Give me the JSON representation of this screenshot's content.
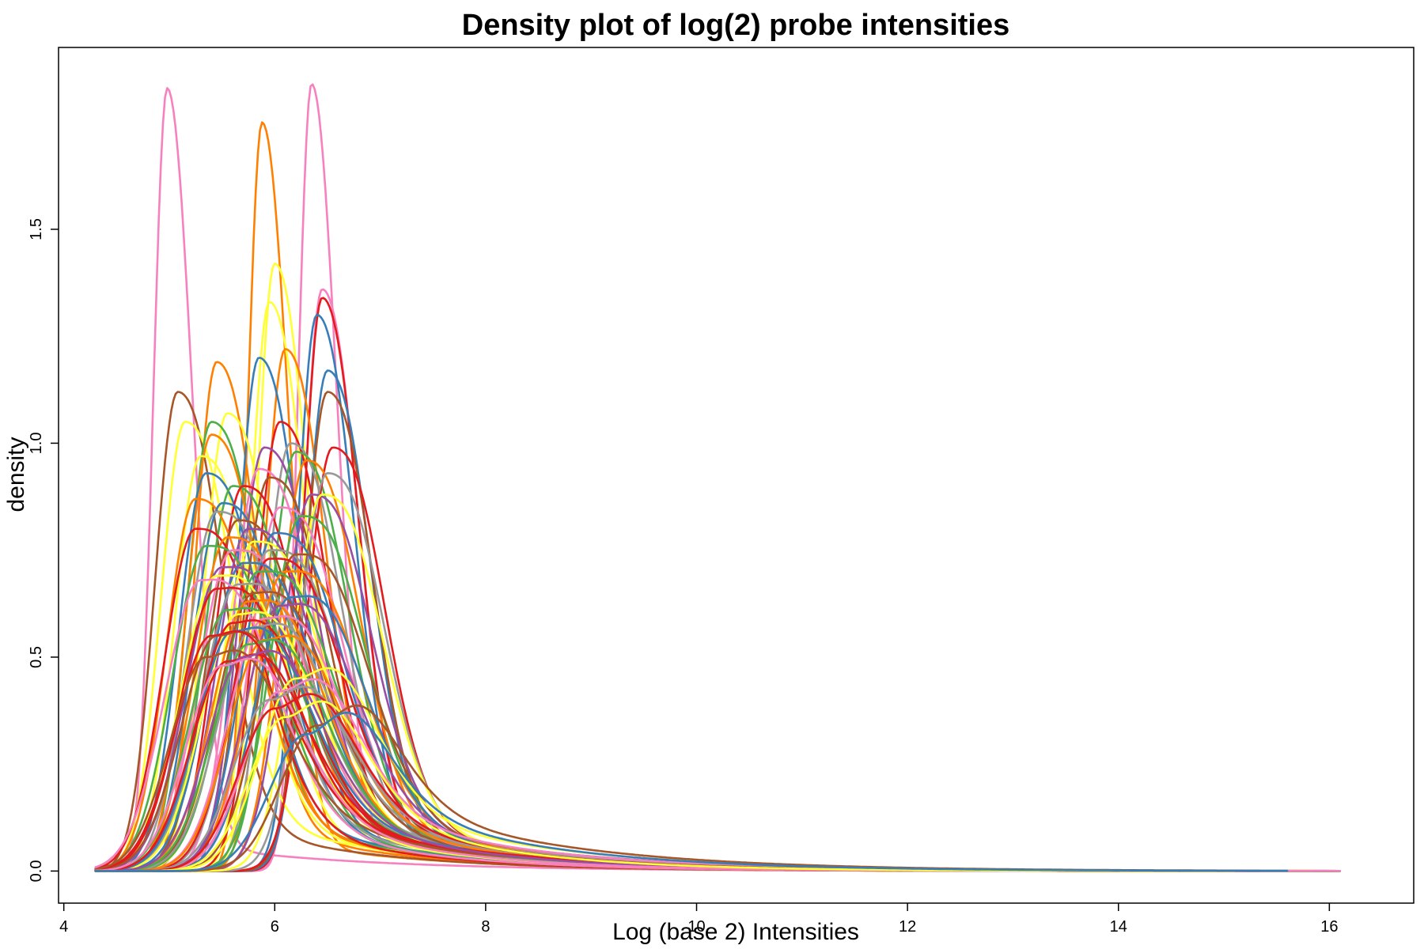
{
  "chart_data": {
    "type": "line",
    "title": "Density plot of log(2) probe intensities",
    "xlabel": "Log (base 2) Intensities",
    "ylabel": "density",
    "xlim": [
      3.95,
      16.8
    ],
    "ylim": [
      -0.075,
      1.925
    ],
    "x_ticks": [
      4,
      6,
      8,
      10,
      12,
      14,
      16
    ],
    "y_ticks": [
      0.0,
      0.5,
      1.0,
      1.5
    ],
    "x_tick_labels": [
      "4",
      "6",
      "8",
      "10",
      "12",
      "14",
      "16"
    ],
    "y_tick_labels": [
      "0.0",
      "0.5",
      "1.0",
      "1.5"
    ],
    "grid": false,
    "legend": "none",
    "palette": [
      "#e41a1c",
      "#377eb8",
      "#4daf4a",
      "#984ea3",
      "#ff7f00",
      "#ffff33",
      "#a65628",
      "#f781bf",
      "#999999",
      "#66c2a5",
      "#fc8d62",
      "#8da0cb",
      "#e78ac3",
      "#a6d854",
      "#ffd92f",
      "#e5c494",
      "#b3b3b3"
    ],
    "series": [
      {
        "color": "#f781bf",
        "peak_x": 4.98,
        "peak_y": 1.83
      },
      {
        "color": "#f781bf",
        "peak_x": 6.35,
        "peak_y": 1.84
      },
      {
        "color": "#ff7f00",
        "peak_x": 5.88,
        "peak_y": 1.75
      },
      {
        "color": "#ffff33",
        "peak_x": 6.0,
        "peak_y": 1.42
      },
      {
        "color": "#ffff33",
        "peak_x": 5.95,
        "peak_y": 1.33
      },
      {
        "color": "#f781bf",
        "peak_x": 6.45,
        "peak_y": 1.36
      },
      {
        "color": "#e41a1c",
        "peak_x": 6.45,
        "peak_y": 1.34
      },
      {
        "color": "#377eb8",
        "peak_x": 6.4,
        "peak_y": 1.3
      },
      {
        "color": "#ff7f00",
        "peak_x": 6.1,
        "peak_y": 1.22
      },
      {
        "color": "#ff7f00",
        "peak_x": 5.45,
        "peak_y": 1.19
      },
      {
        "color": "#377eb8",
        "peak_x": 5.85,
        "peak_y": 1.2
      },
      {
        "color": "#377eb8",
        "peak_x": 6.5,
        "peak_y": 1.17
      },
      {
        "color": "#a65628",
        "peak_x": 6.5,
        "peak_y": 1.12
      },
      {
        "color": "#a65628",
        "peak_x": 5.08,
        "peak_y": 1.12
      },
      {
        "color": "#ffff33",
        "peak_x": 5.55,
        "peak_y": 1.07
      },
      {
        "color": "#ffff33",
        "peak_x": 5.15,
        "peak_y": 1.05
      },
      {
        "color": "#4daf4a",
        "peak_x": 5.4,
        "peak_y": 1.05
      },
      {
        "color": "#e41a1c",
        "peak_x": 6.05,
        "peak_y": 1.05
      },
      {
        "color": "#ff7f00",
        "peak_x": 5.4,
        "peak_y": 1.02
      },
      {
        "color": "#999999",
        "peak_x": 6.15,
        "peak_y": 1.0
      },
      {
        "color": "#984ea3",
        "peak_x": 5.9,
        "peak_y": 0.99
      },
      {
        "color": "#4daf4a",
        "peak_x": 6.2,
        "peak_y": 0.98
      },
      {
        "color": "#e41a1c",
        "peak_x": 6.55,
        "peak_y": 0.99
      },
      {
        "color": "#ffff33",
        "peak_x": 5.3,
        "peak_y": 0.97
      },
      {
        "color": "#ff7f00",
        "peak_x": 6.3,
        "peak_y": 0.96
      },
      {
        "color": "#f781bf",
        "peak_x": 5.85,
        "peak_y": 0.94
      },
      {
        "color": "#377eb8",
        "peak_x": 5.35,
        "peak_y": 0.93
      },
      {
        "color": "#999999",
        "peak_x": 6.5,
        "peak_y": 0.93
      },
      {
        "color": "#a65628",
        "peak_x": 5.95,
        "peak_y": 0.92
      },
      {
        "color": "#4daf4a",
        "peak_x": 5.6,
        "peak_y": 0.9
      },
      {
        "color": "#e41a1c",
        "peak_x": 5.7,
        "peak_y": 0.9
      },
      {
        "color": "#984ea3",
        "peak_x": 6.35,
        "peak_y": 0.88
      },
      {
        "color": "#ffff33",
        "peak_x": 6.45,
        "peak_y": 0.88
      },
      {
        "color": "#ff7f00",
        "peak_x": 5.25,
        "peak_y": 0.87
      },
      {
        "color": "#377eb8",
        "peak_x": 5.5,
        "peak_y": 0.86
      },
      {
        "color": "#f781bf",
        "peak_x": 6.05,
        "peak_y": 0.85
      },
      {
        "color": "#999999",
        "peak_x": 5.45,
        "peak_y": 0.84
      },
      {
        "color": "#4daf4a",
        "peak_x": 6.25,
        "peak_y": 0.83
      },
      {
        "color": "#a65628",
        "peak_x": 5.65,
        "peak_y": 0.82
      },
      {
        "color": "#e41a1c",
        "peak_x": 5.25,
        "peak_y": 0.8
      },
      {
        "color": "#984ea3",
        "peak_x": 5.75,
        "peak_y": 0.8
      },
      {
        "color": "#377eb8",
        "peak_x": 6.0,
        "peak_y": 0.79
      },
      {
        "color": "#ff7f00",
        "peak_x": 5.55,
        "peak_y": 0.78
      },
      {
        "color": "#ffff33",
        "peak_x": 5.8,
        "peak_y": 0.77
      },
      {
        "color": "#4daf4a",
        "peak_x": 5.35,
        "peak_y": 0.76
      },
      {
        "color": "#f781bf",
        "peak_x": 5.6,
        "peak_y": 0.75
      },
      {
        "color": "#999999",
        "peak_x": 5.95,
        "peak_y": 0.75
      },
      {
        "color": "#a65628",
        "peak_x": 6.2,
        "peak_y": 0.74
      },
      {
        "color": "#e41a1c",
        "peak_x": 5.95,
        "peak_y": 0.73
      },
      {
        "color": "#377eb8",
        "peak_x": 5.7,
        "peak_y": 0.72
      },
      {
        "color": "#984ea3",
        "peak_x": 5.5,
        "peak_y": 0.71
      },
      {
        "color": "#ff7f00",
        "peak_x": 6.1,
        "peak_y": 0.7
      },
      {
        "color": "#4daf4a",
        "peak_x": 5.85,
        "peak_y": 0.7
      },
      {
        "color": "#ffff33",
        "peak_x": 5.45,
        "peak_y": 0.69
      },
      {
        "color": "#f781bf",
        "peak_x": 5.3,
        "peak_y": 0.68
      },
      {
        "color": "#999999",
        "peak_x": 5.65,
        "peak_y": 0.67
      },
      {
        "color": "#e41a1c",
        "peak_x": 5.45,
        "peak_y": 0.66
      },
      {
        "color": "#a65628",
        "peak_x": 5.8,
        "peak_y": 0.65
      },
      {
        "color": "#377eb8",
        "peak_x": 6.15,
        "peak_y": 0.64
      },
      {
        "color": "#ff7f00",
        "peak_x": 5.75,
        "peak_y": 0.63
      },
      {
        "color": "#984ea3",
        "peak_x": 6.05,
        "peak_y": 0.62
      },
      {
        "color": "#4daf4a",
        "peak_x": 5.55,
        "peak_y": 0.61
      },
      {
        "color": "#ffff33",
        "peak_x": 5.65,
        "peak_y": 0.6
      },
      {
        "color": "#f781bf",
        "peak_x": 5.9,
        "peak_y": 0.59
      },
      {
        "color": "#e41a1c",
        "peak_x": 5.6,
        "peak_y": 0.58
      },
      {
        "color": "#999999",
        "peak_x": 5.8,
        "peak_y": 0.57
      },
      {
        "color": "#377eb8",
        "peak_x": 5.6,
        "peak_y": 0.56
      },
      {
        "color": "#a65628",
        "peak_x": 5.45,
        "peak_y": 0.55
      },
      {
        "color": "#ff7f00",
        "peak_x": 5.9,
        "peak_y": 0.54
      },
      {
        "color": "#4daf4a",
        "peak_x": 5.75,
        "peak_y": 0.53
      },
      {
        "color": "#e41a1c",
        "peak_x": 5.4,
        "peak_y": 0.55
      },
      {
        "color": "#a65628",
        "peak_x": 5.35,
        "peak_y": 0.5
      },
      {
        "color": "#e41a1c",
        "peak_x": 5.55,
        "peak_y": 0.49
      },
      {
        "color": "#984ea3",
        "peak_x": 5.7,
        "peak_y": 0.5
      },
      {
        "color": "#f781bf",
        "peak_x": 5.5,
        "peak_y": 0.48
      },
      {
        "color": "#ffff33",
        "peak_x": 6.2,
        "peak_y": 0.45
      },
      {
        "color": "#f781bf",
        "peak_x": 6.05,
        "peak_y": 0.42
      },
      {
        "color": "#999999",
        "peak_x": 5.95,
        "peak_y": 0.4
      },
      {
        "color": "#e41a1c",
        "peak_x": 6.0,
        "peak_y": 0.38
      },
      {
        "color": "#ffff33",
        "peak_x": 6.1,
        "peak_y": 0.36
      },
      {
        "color": "#a65628",
        "peak_x": 6.4,
        "peak_y": 0.34
      },
      {
        "color": "#377eb8",
        "peak_x": 6.3,
        "peak_y": 0.32
      }
    ]
  }
}
